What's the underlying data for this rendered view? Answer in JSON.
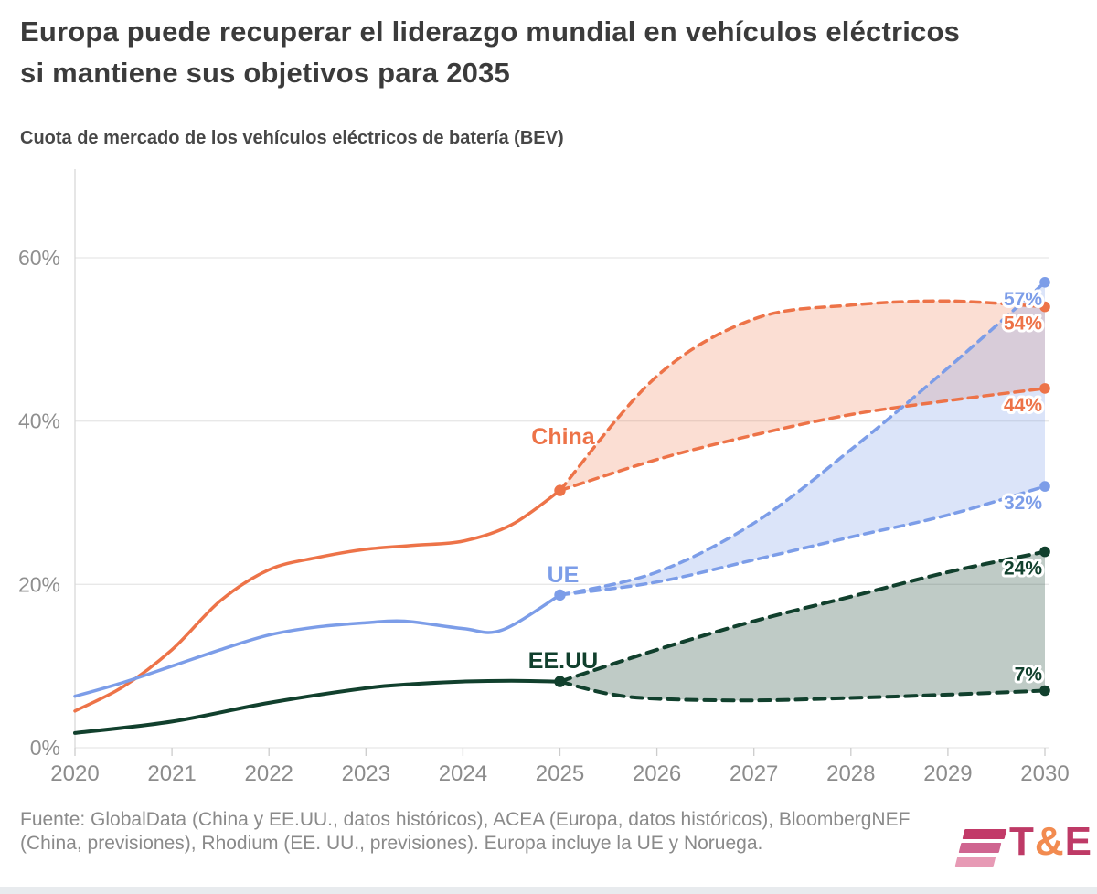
{
  "title": "Europa puede recuperar el liderazgo mundial en vehículos eléctricos si mantiene sus objetivos para 2035",
  "subtitle": "Cuota de mercado de los vehículos eléctricos de batería (BEV)",
  "source": "Fuente: GlobalData (China y EE.UU., datos históricos), ACEA (Europa, datos históricos), BloombergNEF (China, previsiones), Rhodium (EE. UU., previsiones). Europa incluye la UE y Noruega.",
  "logo": {
    "t": "T",
    "amp": "&",
    "e": "E"
  },
  "colors": {
    "title_text": "#3b3b3b",
    "axis_text": "#8c8c8c",
    "gridline": "#e8e8e8",
    "axis_line": "#d8d8d8",
    "china": "#ED7348",
    "ue": "#7C9DE8",
    "eeuu": "#11402D",
    "logo_pink": "#be3a66",
    "logo_orange": "#f28b50"
  },
  "chart_data": {
    "type": "line",
    "title": "Cuota de mercado de los vehículos eléctricos de batería (BEV)",
    "xlabel": "",
    "ylabel": "",
    "xlim": [
      2020,
      2030
    ],
    "ylim": [
      0,
      70
    ],
    "grid": "horizontal",
    "legend_position": "inline-labels",
    "forecast_start": 2025,
    "yticks": [
      {
        "value": 0,
        "label": "0%"
      },
      {
        "value": 20,
        "label": "20%"
      },
      {
        "value": 40,
        "label": "40%"
      },
      {
        "value": 60,
        "label": "60%"
      }
    ],
    "xticks": [
      2020,
      2021,
      2022,
      2023,
      2024,
      2025,
      2026,
      2027,
      2028,
      2029,
      2030
    ],
    "series": [
      {
        "name": "China",
        "color": "#ED7348",
        "fill": "rgba(237,115,72,0.24)",
        "historical": {
          "x": [
            2020,
            2020.5,
            2021,
            2021.5,
            2022,
            2022.5,
            2023,
            2023.5,
            2024,
            2024.5,
            2025
          ],
          "y": [
            4.5,
            7.5,
            12,
            18,
            21.8,
            23.3,
            24.3,
            24.8,
            25.3,
            27.3,
            31.5
          ]
        },
        "forecast_upper": {
          "x": [
            2025,
            2026,
            2027,
            2028,
            2029,
            2030
          ],
          "y": [
            31.5,
            45.5,
            52.5,
            54.2,
            54.7,
            54
          ]
        },
        "forecast_lower": {
          "x": [
            2025,
            2026,
            2027,
            2028,
            2029,
            2030
          ],
          "y": [
            31.5,
            35.3,
            38.3,
            40.8,
            42.5,
            44
          ]
        },
        "end_labels": [
          {
            "text": "54%",
            "value": 54,
            "side": "below"
          },
          {
            "text": "44%",
            "value": 44,
            "side": "below"
          }
        ]
      },
      {
        "name": "UE",
        "color": "#7C9DE8",
        "fill": "rgba(124,157,232,0.28)",
        "historical": {
          "x": [
            2020,
            2020.5,
            2021,
            2021.5,
            2022,
            2022.5,
            2023,
            2023.4,
            2024,
            2024.4,
            2025
          ],
          "y": [
            6.3,
            8,
            10,
            12,
            13.8,
            14.8,
            15.3,
            15.5,
            14.6,
            14.4,
            18.7
          ]
        },
        "forecast_upper": {
          "x": [
            2025,
            2026,
            2027,
            2028,
            2029,
            2030
          ],
          "y": [
            18.7,
            21.5,
            27.5,
            36.5,
            46.5,
            57
          ]
        },
        "forecast_lower": {
          "x": [
            2025,
            2026,
            2027,
            2028,
            2029,
            2030
          ],
          "y": [
            18.7,
            20.3,
            23,
            25.8,
            28.5,
            32
          ]
        },
        "end_labels": [
          {
            "text": "57%",
            "value": 57,
            "side": "below"
          },
          {
            "text": "32%",
            "value": 32,
            "side": "below"
          }
        ]
      },
      {
        "name": "EE.UU",
        "color": "#11402D",
        "fill": "rgba(17,64,45,0.27)",
        "historical": {
          "x": [
            2020,
            2021,
            2022,
            2023,
            2023.5,
            2024,
            2024.5,
            2025
          ],
          "y": [
            1.8,
            3.2,
            5.5,
            7.3,
            7.8,
            8.1,
            8.2,
            8.1
          ]
        },
        "forecast_upper": {
          "x": [
            2025,
            2026,
            2027,
            2028,
            2029,
            2030
          ],
          "y": [
            8.1,
            12,
            15.5,
            18.5,
            21.5,
            24
          ]
        },
        "forecast_lower": {
          "x": [
            2025,
            2025.5,
            2026,
            2027,
            2028,
            2029,
            2030
          ],
          "y": [
            8.1,
            6.6,
            6.0,
            5.8,
            6.1,
            6.5,
            7
          ]
        },
        "end_labels": [
          {
            "text": "24%",
            "value": 24,
            "side": "below"
          },
          {
            "text": "7%",
            "value": 7,
            "side": "above"
          }
        ]
      }
    ]
  }
}
